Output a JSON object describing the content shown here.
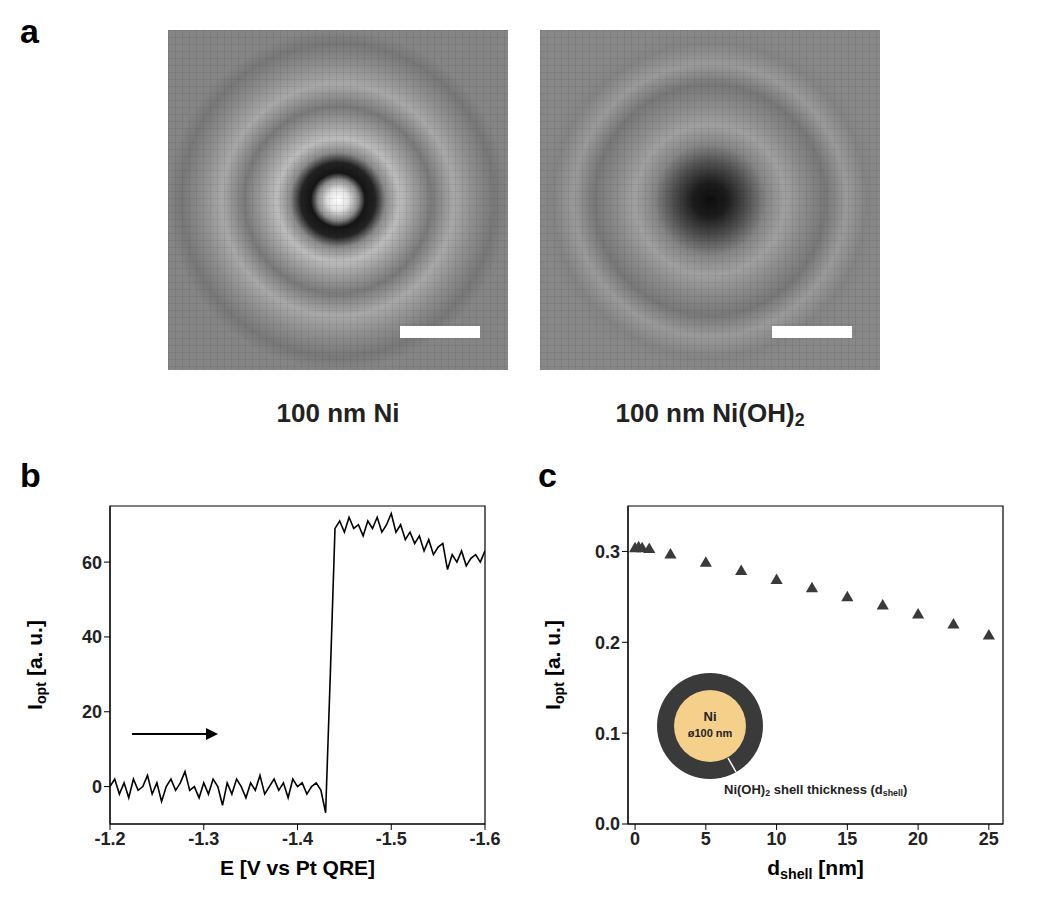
{
  "chart_data": [
    {
      "type": "image",
      "panel": "a",
      "images": [
        {
          "caption": "100 nm Ni"
        },
        {
          "caption": [
            "100 nm Ni(OH)",
            {
              "sub": "2"
            }
          ]
        }
      ]
    },
    {
      "type": "line",
      "panel": "b",
      "x_label": "E [V vs Pt QRE]",
      "y_label": [
        "I",
        {
          "sub": "opt"
        },
        " [a. u.]"
      ],
      "xlim": [
        -1.2,
        -1.6
      ],
      "xticks": [
        -1.2,
        -1.3,
        -1.4,
        -1.5,
        -1.6
      ],
      "ylim": [
        -10,
        75
      ],
      "yticks": [
        0,
        20,
        40,
        60
      ],
      "color": "#000000",
      "grid": false,
      "x": [
        -1.2,
        -1.205,
        -1.21,
        -1.215,
        -1.22,
        -1.225,
        -1.23,
        -1.235,
        -1.24,
        -1.245,
        -1.25,
        -1.255,
        -1.26,
        -1.265,
        -1.27,
        -1.275,
        -1.28,
        -1.285,
        -1.29,
        -1.295,
        -1.3,
        -1.305,
        -1.31,
        -1.315,
        -1.32,
        -1.325,
        -1.33,
        -1.335,
        -1.34,
        -1.345,
        -1.35,
        -1.355,
        -1.36,
        -1.365,
        -1.37,
        -1.375,
        -1.38,
        -1.385,
        -1.39,
        -1.395,
        -1.4,
        -1.405,
        -1.41,
        -1.415,
        -1.42,
        -1.425,
        -1.43,
        -1.435,
        -1.44,
        -1.445,
        -1.45,
        -1.455,
        -1.46,
        -1.465,
        -1.47,
        -1.475,
        -1.48,
        -1.485,
        -1.49,
        -1.495,
        -1.5,
        -1.505,
        -1.51,
        -1.515,
        -1.52,
        -1.525,
        -1.53,
        -1.535,
        -1.54,
        -1.545,
        -1.55,
        -1.555,
        -1.56,
        -1.565,
        -1.57,
        -1.575,
        -1.58,
        -1.585,
        -1.59,
        -1.595,
        -1.6
      ],
      "values": [
        0,
        2,
        -2,
        1,
        -3,
        2,
        -1,
        0,
        3,
        -2,
        1,
        -4,
        0,
        2,
        -1,
        1,
        4,
        -1,
        0,
        -3,
        1,
        -2,
        2,
        0,
        -5,
        1,
        -2,
        2,
        0,
        -3,
        1,
        -1,
        3,
        -2,
        0,
        2,
        -1,
        1,
        -3,
        2,
        0,
        1,
        -2,
        0,
        1,
        -1,
        -7,
        30,
        69,
        71,
        68,
        72,
        69,
        70,
        67,
        71,
        69,
        72,
        68,
        70,
        73,
        68,
        70,
        66,
        68,
        65,
        67,
        63,
        66,
        62,
        64,
        65,
        58,
        62,
        60,
        63,
        59,
        61,
        62,
        60,
        63
      ]
    },
    {
      "type": "scatter",
      "panel": "c",
      "x_label": [
        "d",
        {
          "sub": "shell"
        },
        " [nm]"
      ],
      "y_label": [
        "I",
        {
          "sub": "opt"
        },
        " [a. u.]"
      ],
      "xlim": [
        -0.5,
        26
      ],
      "xticks": [
        0,
        5,
        10,
        15,
        20,
        25
      ],
      "ylim": [
        0,
        0.35
      ],
      "yticks": [
        {
          "value": 0,
          "label": "0.0"
        },
        0.1,
        0.2,
        0.3
      ],
      "color": "#3a3a3a",
      "marker": "triangle",
      "grid": false,
      "x": [
        0,
        0.25,
        0.5,
        1,
        2.5,
        5,
        7.5,
        10,
        12.5,
        15,
        17.5,
        20,
        22.5,
        25
      ],
      "values": [
        0.303,
        0.304,
        0.303,
        0.302,
        0.296,
        0.287,
        0.278,
        0.268,
        0.259,
        0.249,
        0.24,
        0.23,
        0.219,
        0.207
      ],
      "inset": {
        "core": "Ni",
        "core_size": "ø100 nm",
        "shell": [
          "Ni(OH)",
          {
            "sub": "2"
          },
          " shell thickness (d",
          {
            "sub": "shell"
          },
          ")"
        ]
      }
    }
  ]
}
